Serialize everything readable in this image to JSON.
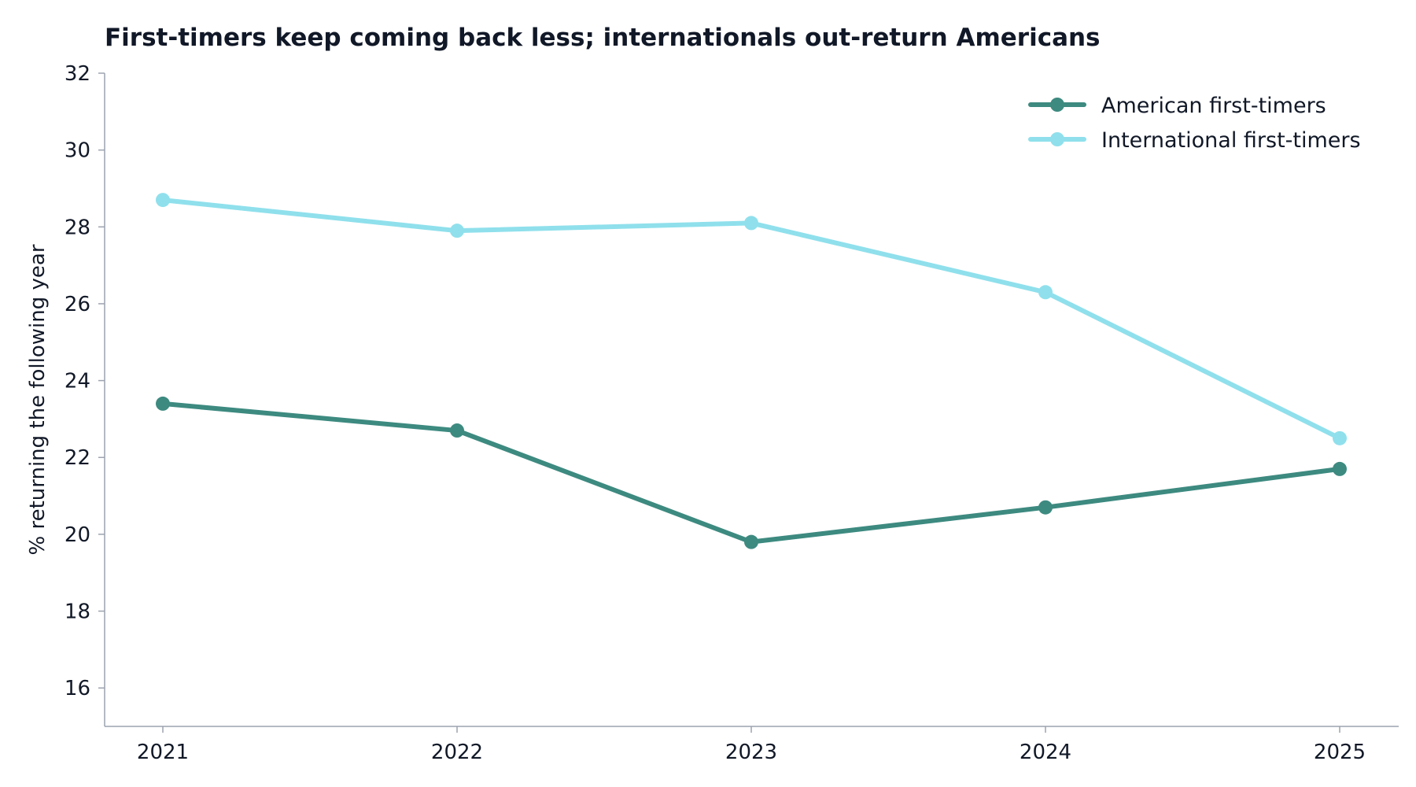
{
  "chart_data": {
    "type": "line",
    "title": "First-timers keep coming back less; internationals out-return Americans",
    "xlabel": "",
    "ylabel": "% returning the following year",
    "x": [
      "2021",
      "2022",
      "2023",
      "2024",
      "2025"
    ],
    "ylim": [
      15,
      32
    ],
    "yticks": [
      16,
      18,
      20,
      22,
      24,
      26,
      28,
      30,
      32
    ],
    "grid": false,
    "legend_position": "top-right",
    "series": [
      {
        "name": "American first-timers",
        "color": "#3d8a80",
        "values": [
          23.4,
          22.7,
          19.8,
          20.7,
          21.7
        ]
      },
      {
        "name": "International first-timers",
        "color": "#8fe0ec",
        "values": [
          28.7,
          27.9,
          28.1,
          26.3,
          22.5
        ]
      }
    ]
  }
}
